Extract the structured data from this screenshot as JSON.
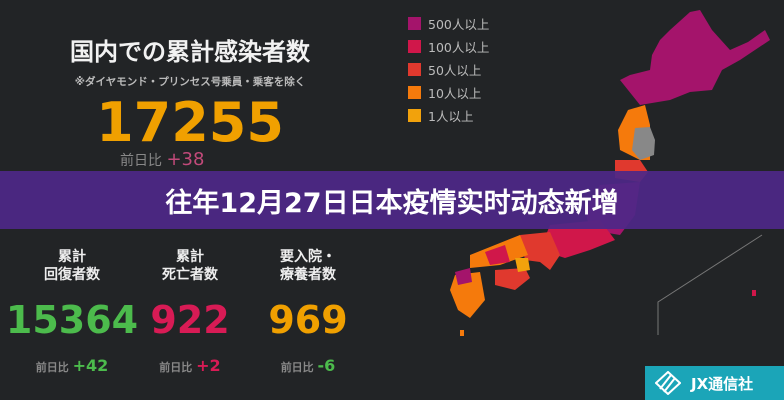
{
  "header": {
    "title": "国内での累計感染者数",
    "note": "※ダイヤモンド・プリンセス号乗員・乗客を除く",
    "total": "17255",
    "total_diff_label": "前日比",
    "total_diff": "+38"
  },
  "stats": [
    {
      "label1": "累計",
      "label2": "回復者数",
      "value": "15364",
      "diff_label": "前日比",
      "diff": "+42",
      "color": "#4cbb4c",
      "diff_color": "#4cbb4c"
    },
    {
      "label1": "累計",
      "label2": "死亡者数",
      "value": "922",
      "diff_label": "前日比",
      "diff": "+2",
      "color": "#d81b55",
      "diff_color": "#d81b55"
    },
    {
      "label1": "要入院・",
      "label2": "療養者数",
      "value": "969",
      "diff_label": "前日比",
      "diff": "-6",
      "color": "#f0a000",
      "diff_color": "#4cbb4c"
    }
  ],
  "legend": [
    {
      "label": "500人以上",
      "color": "#a4146b"
    },
    {
      "label": "100人以上",
      "color": "#d0174a"
    },
    {
      "label": "50人以上",
      "color": "#e0392e"
    },
    {
      "label": "10人以上",
      "color": "#f57a0c"
    },
    {
      "label": "1人以上",
      "color": "#f2a20c"
    }
  ],
  "banner": {
    "text": "往年12月27日日本疫情实时动态新增"
  },
  "logo": {
    "text": "JX通信社",
    "icon": "jx-logo-icon"
  }
}
